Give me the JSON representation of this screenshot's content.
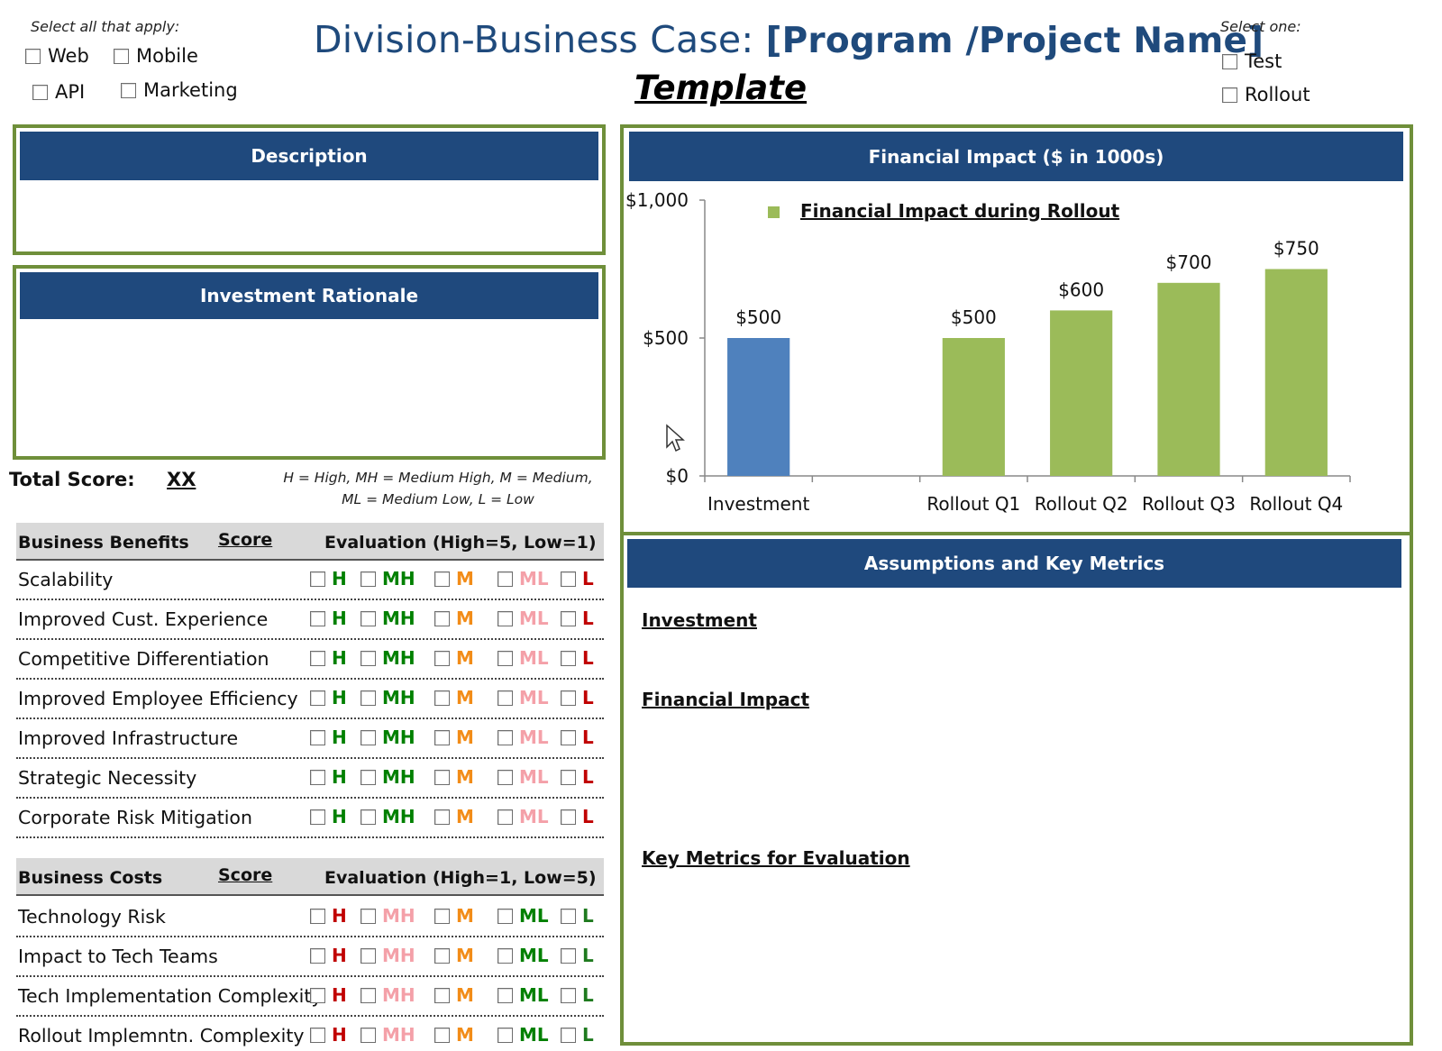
{
  "header": {
    "select_all_label": "Select all that apply:",
    "platform_options": [
      "Web",
      "Mobile",
      "API",
      "Marketing"
    ],
    "title_main": "Division-Business Case: ",
    "title_bracket": "[Program /Project Name]",
    "subtitle": "Template",
    "select_one_label": "Select one:",
    "phase_options": [
      "Test",
      "Rollout"
    ]
  },
  "description": {
    "title": "Description"
  },
  "rationale": {
    "title": "Investment Rationale"
  },
  "score": {
    "total_label": "Total Score:",
    "total_value": "XX",
    "legend_line1": "H = High, MH = Medium High, M = Medium,",
    "legend_line2": "ML = Medium Low, L = Low"
  },
  "benefits": {
    "col1": "Business Benefits",
    "col2": "Score",
    "col3": "Evaluation (High=5, Low=1)",
    "rows": [
      "Scalability",
      "Improved Cust. Experience",
      "Competitive Differentiation",
      "Improved Employee Efficiency",
      "Improved Infrastructure",
      "Strategic Necessity",
      "Corporate Risk Mitigation"
    ],
    "levels": [
      "H",
      "MH",
      "M",
      "ML",
      "L"
    ],
    "level_colors": [
      "#008000",
      "#008000",
      "#f28c18",
      "#f4a0a8",
      "#c00000"
    ]
  },
  "costs": {
    "col1": "Business Costs",
    "col2": "Score",
    "col3": "Evaluation (High=1, Low=5)",
    "rows": [
      "Technology Risk",
      "Impact to Tech Teams",
      "Tech Implementation Complexity",
      "Rollout Implemntn. Complexity"
    ],
    "levels": [
      "H",
      "MH",
      "M",
      "ML",
      "L"
    ],
    "level_colors": [
      "#c00000",
      "#f4a0a8",
      "#f28c18",
      "#008000",
      "#1e7a1e"
    ]
  },
  "financial": {
    "title": "Financial Impact ($ in 1000s)"
  },
  "chart_data": {
    "type": "bar",
    "title": "",
    "categories": [
      "Investment",
      "",
      "Rollout Q1",
      "Rollout Q2",
      "Rollout Q3",
      "Rollout Q4"
    ],
    "series": [
      {
        "name": "",
        "values": [
          500,
          null,
          null,
          null,
          null,
          null
        ],
        "color": "#4f81bd"
      },
      {
        "name": "Financial Impact during Rollout",
        "values": [
          null,
          null,
          500,
          600,
          700,
          750
        ],
        "color": "#9bbb59"
      }
    ],
    "data_labels": [
      "$500",
      "",
      "$500",
      "$600",
      "$700",
      "$750"
    ],
    "y_ticks": [
      "$0",
      "$500",
      "$1,000"
    ],
    "y_tick_values": [
      0,
      500,
      1000
    ],
    "ylim": [
      0,
      1000
    ],
    "legend_position": "top",
    "grid": false
  },
  "assumptions": {
    "title": "Assumptions and Key Metrics",
    "sections": [
      "Investment",
      "Financial Impact",
      "Key Metrics for Evaluation"
    ]
  }
}
